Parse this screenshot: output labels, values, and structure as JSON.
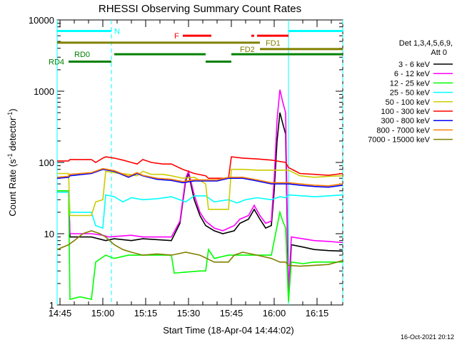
{
  "chart_data": {
    "type": "line",
    "title": "RHESSI Observing Summary Count Rates",
    "xlabel": "Start Time (18-Apr-04 14:44:02)",
    "ylabel_main": "Count Rate (s",
    "ylabel_sup1": "-1",
    "ylabel_mid": " detector",
    "ylabel_sup2": "-1",
    "ylabel_end": ")",
    "x_unit": "minutes after 14:44:02",
    "xlim": [
      0,
      100
    ],
    "ylim": [
      1,
      10000
    ],
    "yscale": "log",
    "x_ticks": [
      {
        "label": "14:45",
        "value": 1
      },
      {
        "label": "15:00",
        "value": 16
      },
      {
        "label": "15:15",
        "value": 31
      },
      {
        "label": "15:30",
        "value": 46
      },
      {
        "label": "15:45",
        "value": 61
      },
      {
        "label": "16:00",
        "value": 76
      },
      {
        "label": "16:15",
        "value": 91
      }
    ],
    "y_ticks": [
      {
        "label": "1",
        "value": 1
      },
      {
        "label": "10",
        "value": 10
      },
      {
        "label": "100",
        "value": 100
      },
      {
        "label": "1000",
        "value": 1000
      },
      {
        "label": "10000",
        "value": 10000
      }
    ],
    "legend": {
      "placement": "right",
      "header": [
        "Det 1,3,4,5,6,9,",
        "Att 0"
      ]
    },
    "series": [
      {
        "name": "3 - 6 keV",
        "color": "#000000",
        "points": [
          [
            0,
            40
          ],
          [
            4,
            40
          ],
          [
            4.5,
            9
          ],
          [
            12,
            9
          ],
          [
            17,
            8
          ],
          [
            20,
            8.5
          ],
          [
            26,
            8
          ],
          [
            30,
            8.5
          ],
          [
            40,
            8
          ],
          [
            43,
            14
          ],
          [
            45,
            55
          ],
          [
            46,
            70
          ],
          [
            48,
            30
          ],
          [
            50,
            18
          ],
          [
            52,
            13
          ],
          [
            55,
            11
          ],
          [
            58,
            10
          ],
          [
            62,
            11
          ],
          [
            64,
            14
          ],
          [
            67,
            16
          ],
          [
            69,
            22
          ],
          [
            71,
            16
          ],
          [
            73,
            12
          ],
          [
            75,
            13
          ],
          [
            76,
            40
          ],
          [
            77,
            200
          ],
          [
            78,
            500
          ],
          [
            79,
            350
          ],
          [
            80,
            250
          ],
          [
            81,
            1.2
          ],
          [
            82,
            7
          ],
          [
            86,
            6.5
          ],
          [
            90,
            6
          ],
          [
            95,
            5.8
          ],
          [
            100,
            5.7
          ]
        ]
      },
      {
        "name": "6 - 12 keV",
        "color": "#ff00ff",
        "points": [
          [
            0,
            40
          ],
          [
            4,
            40
          ],
          [
            4.5,
            10
          ],
          [
            12,
            10
          ],
          [
            16,
            9.5
          ],
          [
            18,
            9
          ],
          [
            26,
            9.5
          ],
          [
            30,
            9
          ],
          [
            40,
            9
          ],
          [
            43,
            15
          ],
          [
            45,
            60
          ],
          [
            46,
            75
          ],
          [
            48,
            35
          ],
          [
            50,
            20
          ],
          [
            52,
            15
          ],
          [
            55,
            12
          ],
          [
            58,
            11
          ],
          [
            62,
            13
          ],
          [
            64,
            16
          ],
          [
            67,
            18
          ],
          [
            69,
            25
          ],
          [
            71,
            18
          ],
          [
            73,
            14
          ],
          [
            75,
            15
          ],
          [
            76,
            60
          ],
          [
            77,
            400
          ],
          [
            78,
            1050
          ],
          [
            79,
            700
          ],
          [
            80,
            500
          ],
          [
            81,
            1.5
          ],
          [
            82,
            9
          ],
          [
            86,
            8.5
          ],
          [
            90,
            8
          ],
          [
            95,
            7.8
          ],
          [
            100,
            7.5
          ]
        ]
      },
      {
        "name": "12 - 25 keV",
        "color": "#00ff00",
        "points": [
          [
            0,
            40
          ],
          [
            4,
            40
          ],
          [
            4.5,
            1.2
          ],
          [
            8,
            1.3
          ],
          [
            12,
            1.2
          ],
          [
            13.5,
            4
          ],
          [
            17,
            5
          ],
          [
            20,
            4.5
          ],
          [
            25,
            5
          ],
          [
            30,
            5
          ],
          [
            40,
            5
          ],
          [
            41,
            2.8
          ],
          [
            50,
            3
          ],
          [
            52,
            3
          ],
          [
            53,
            6
          ],
          [
            55,
            4.5
          ],
          [
            60,
            5
          ],
          [
            65,
            5
          ],
          [
            70,
            5
          ],
          [
            75,
            5
          ],
          [
            76,
            8
          ],
          [
            78,
            20
          ],
          [
            79,
            15
          ],
          [
            80,
            12
          ],
          [
            81,
            1.1
          ],
          [
            82,
            4
          ],
          [
            86,
            3.8
          ],
          [
            90,
            4
          ],
          [
            95,
            4
          ],
          [
            100,
            4
          ]
        ]
      },
      {
        "name": "25 - 50 keV",
        "color": "#00ffff",
        "points": [
          [
            0,
            38
          ],
          [
            4,
            38
          ],
          [
            4.5,
            20
          ],
          [
            12,
            20
          ],
          [
            13.5,
            13
          ],
          [
            16,
            12
          ],
          [
            17,
            35
          ],
          [
            20,
            33
          ],
          [
            23,
            28
          ],
          [
            26,
            32
          ],
          [
            30,
            30
          ],
          [
            35,
            31
          ],
          [
            40,
            33
          ],
          [
            45,
            28
          ],
          [
            48,
            34
          ],
          [
            52,
            34
          ],
          [
            55,
            28
          ],
          [
            60,
            30
          ],
          [
            63,
            27
          ],
          [
            66,
            30
          ],
          [
            70,
            32
          ],
          [
            75,
            30
          ],
          [
            78,
            33
          ],
          [
            80,
            32
          ],
          [
            81,
            35
          ],
          [
            90,
            33
          ],
          [
            95,
            34
          ],
          [
            100,
            35
          ]
        ]
      },
      {
        "name": "50 - 100 keV",
        "color": "#cccc00",
        "points": [
          [
            0,
            70
          ],
          [
            4,
            70
          ],
          [
            4.5,
            18
          ],
          [
            12,
            18
          ],
          [
            13.5,
            28
          ],
          [
            16,
            30
          ],
          [
            17,
            75
          ],
          [
            20,
            72
          ],
          [
            25,
            68
          ],
          [
            28,
            65
          ],
          [
            30,
            75
          ],
          [
            33,
            68
          ],
          [
            37,
            68
          ],
          [
            40,
            65
          ],
          [
            44,
            60
          ],
          [
            48,
            62
          ],
          [
            52,
            50
          ],
          [
            53,
            22
          ],
          [
            60,
            22
          ],
          [
            61,
            80
          ],
          [
            65,
            80
          ],
          [
            70,
            78
          ],
          [
            75,
            78
          ],
          [
            81,
            78
          ],
          [
            85,
            65
          ],
          [
            90,
            62
          ],
          [
            95,
            64
          ],
          [
            100,
            65
          ]
        ]
      },
      {
        "name": "100 - 300 keV",
        "color": "#ff0000",
        "points": [
          [
            0,
            105
          ],
          [
            4,
            105
          ],
          [
            4.5,
            110
          ],
          [
            12,
            110
          ],
          [
            13.5,
            100
          ],
          [
            16,
            115
          ],
          [
            17,
            120
          ],
          [
            20,
            115
          ],
          [
            23,
            108
          ],
          [
            26,
            100
          ],
          [
            28,
            95
          ],
          [
            30,
            110
          ],
          [
            33,
            100
          ],
          [
            37,
            95
          ],
          [
            40,
            95
          ],
          [
            44,
            80
          ],
          [
            46,
            75
          ],
          [
            48,
            70
          ],
          [
            52,
            65
          ],
          [
            53,
            60
          ],
          [
            60,
            60
          ],
          [
            61,
            120
          ],
          [
            65,
            115
          ],
          [
            70,
            112
          ],
          [
            75,
            108
          ],
          [
            80,
            100
          ],
          [
            81,
            85
          ],
          [
            85,
            70
          ],
          [
            90,
            68
          ],
          [
            95,
            66
          ],
          [
            100,
            70
          ]
        ]
      },
      {
        "name": "300 - 800 keV",
        "color": "#0000ff",
        "points": [
          [
            0,
            60
          ],
          [
            4,
            62
          ],
          [
            4.5,
            65
          ],
          [
            12,
            70
          ],
          [
            16,
            80
          ],
          [
            20,
            75
          ],
          [
            25,
            62
          ],
          [
            28,
            70
          ],
          [
            30,
            65
          ],
          [
            35,
            58
          ],
          [
            40,
            56
          ],
          [
            44,
            52
          ],
          [
            48,
            55
          ],
          [
            52,
            55
          ],
          [
            56,
            55
          ],
          [
            60,
            60
          ],
          [
            65,
            60
          ],
          [
            70,
            55
          ],
          [
            75,
            50
          ],
          [
            81,
            50
          ],
          [
            85,
            48
          ],
          [
            90,
            46
          ],
          [
            95,
            45
          ],
          [
            100,
            48
          ]
        ]
      },
      {
        "name": "800 - 7000 keV",
        "color": "#ff8000",
        "points": [
          [
            0,
            62
          ],
          [
            4,
            64
          ],
          [
            4.5,
            68
          ],
          [
            12,
            72
          ],
          [
            16,
            82
          ],
          [
            20,
            77
          ],
          [
            25,
            64
          ],
          [
            28,
            72
          ],
          [
            30,
            66
          ],
          [
            35,
            60
          ],
          [
            40,
            58
          ],
          [
            44,
            54
          ],
          [
            48,
            57
          ],
          [
            52,
            57
          ],
          [
            56,
            57
          ],
          [
            60,
            62
          ],
          [
            65,
            62
          ],
          [
            70,
            57
          ],
          [
            75,
            52
          ],
          [
            81,
            52
          ],
          [
            85,
            50
          ],
          [
            90,
            48
          ],
          [
            95,
            47
          ],
          [
            100,
            50
          ]
        ]
      },
      {
        "name": "7000 - 15000 keV",
        "color": "#808000",
        "points": [
          [
            0,
            6
          ],
          [
            4,
            7
          ],
          [
            6,
            8
          ],
          [
            9,
            10
          ],
          [
            12,
            11
          ],
          [
            15,
            10
          ],
          [
            17,
            9
          ],
          [
            20,
            7
          ],
          [
            23,
            6
          ],
          [
            26,
            5.5
          ],
          [
            30,
            5
          ],
          [
            35,
            5.2
          ],
          [
            40,
            5
          ],
          [
            45,
            5.5
          ],
          [
            50,
            5
          ],
          [
            55,
            4
          ],
          [
            60,
            4
          ],
          [
            62,
            5
          ],
          [
            65,
            5.5
          ],
          [
            70,
            5
          ],
          [
            75,
            4.5
          ],
          [
            78,
            4
          ],
          [
            80,
            4
          ],
          [
            81,
            3.6
          ],
          [
            85,
            3.5
          ],
          [
            90,
            3.6
          ],
          [
            95,
            3.7
          ],
          [
            100,
            4.2
          ]
        ]
      }
    ],
    "annotations": [
      {
        "label": "N",
        "color": "#00ffff",
        "x0": 0,
        "x1": 19,
        "y": 7000,
        "label_x": 20
      },
      {
        "label": "",
        "color": "#00ffff",
        "x0": 81,
        "x1": 100,
        "y": 7000
      },
      {
        "label": "F",
        "color": "#ff0000",
        "x0": 44,
        "x1": 54,
        "y": 6000,
        "label_x": 41
      },
      {
        "label": "",
        "color": "#ff0000",
        "x0": 68,
        "x1": 69,
        "y": 6000
      },
      {
        "label": "",
        "color": "#ff0000",
        "x0": 70,
        "x1": 81,
        "y": 6000
      },
      {
        "label": "FD1",
        "color": "#808000",
        "x0": 0,
        "x1": 71,
        "y": 4800,
        "label_x": 73
      },
      {
        "label": "FD2",
        "color": "#808000",
        "x0": 71,
        "x1": 100,
        "y": 3900,
        "label_x": 64
      },
      {
        "label": "RD0",
        "color": "#008000",
        "x0": 20,
        "x1": 52,
        "y": 3300,
        "label_x": 6
      },
      {
        "label": "",
        "color": "#008000",
        "x0": 61,
        "x1": 100,
        "y": 3300
      },
      {
        "label": "RD4",
        "color": "#008000",
        "x0": 4,
        "x1": 19,
        "y": 2600,
        "label_x": -3
      },
      {
        "label": "",
        "color": "#008000",
        "x0": 52,
        "x1": 61,
        "y": 2600
      }
    ],
    "vlines": [
      {
        "x": 0,
        "color": "#00ffff",
        "style": "solid"
      },
      {
        "x": 19,
        "color": "#00ffff",
        "style": "dashed"
      },
      {
        "x": 81,
        "color": "#00ffff",
        "style": "solid"
      },
      {
        "x": 100,
        "color": "#00ffff",
        "style": "dashed"
      }
    ]
  },
  "timestamp": "16-Oct-2021 20:12"
}
